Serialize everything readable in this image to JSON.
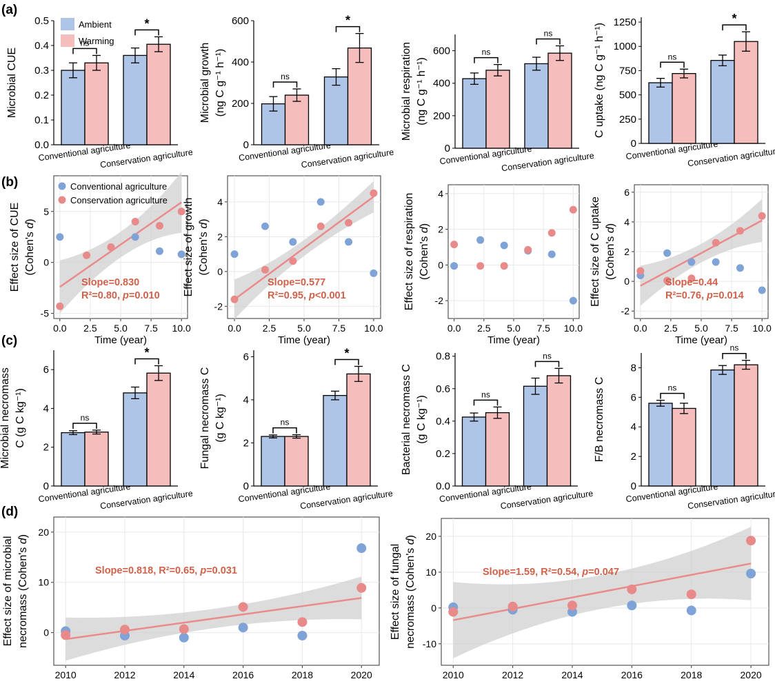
{
  "colors": {
    "ambient": "#aec5e8",
    "warming": "#f6bdbd",
    "conventional": "#7fa3d6",
    "conservation": "#e98a8a",
    "fit": "#ea8a8a",
    "band": "#d0d0d0",
    "annot": "#d0614a"
  },
  "panel_labels": [
    "(a)",
    "(b)",
    "(c)",
    "(d)"
  ],
  "chart_data": [
    {
      "id": "a1",
      "type": "bar",
      "categories": [
        "Conventional agriculture",
        "Conservation agriculture"
      ],
      "series": [
        {
          "name": "Ambient",
          "values": [
            0.3,
            0.36
          ],
          "errors": [
            0.03,
            0.03
          ]
        },
        {
          "name": "Warming",
          "values": [
            0.33,
            0.405
          ],
          "errors": [
            0.03,
            0.03
          ]
        }
      ],
      "ylabel": "Microbial CUE",
      "ylim": [
        0,
        0.5
      ],
      "yticks": [
        "0.0",
        "0.1",
        "0.2",
        "0.3",
        "0.4",
        "0.5"
      ],
      "sig": [
        "ns",
        "*"
      ],
      "legend": [
        "Ambient",
        "Warming"
      ]
    },
    {
      "id": "a2",
      "type": "bar",
      "categories": [
        "Conventional agriculture",
        "Conservation agriculture"
      ],
      "series": [
        {
          "name": "Ambient",
          "values": [
            198,
            328
          ],
          "errors": [
            35,
            40
          ]
        },
        {
          "name": "Warming",
          "values": [
            240,
            468
          ],
          "errors": [
            30,
            70
          ]
        }
      ],
      "ylabel": [
        "Microbial growth",
        "(ng C g⁻¹ h⁻¹)"
      ],
      "ylim": [
        0,
        600
      ],
      "yticks": [
        "0",
        "200",
        "400",
        "600"
      ],
      "sig": [
        "ns",
        "*"
      ]
    },
    {
      "id": "a3",
      "type": "bar",
      "categories": [
        "Conventional agriculture",
        "Conservation agriculture"
      ],
      "series": [
        {
          "name": "Ambient",
          "values": [
            428,
            520
          ],
          "errors": [
            35,
            40
          ]
        },
        {
          "name": "Warming",
          "values": [
            480,
            585
          ],
          "errors": [
            35,
            45
          ]
        }
      ],
      "ylabel": [
        "Microbial respiration",
        "(ng C g⁻¹ h⁻¹)"
      ],
      "ylim": [
        0,
        700
      ],
      "yticks": [
        "0",
        "200",
        "400",
        "600"
      ],
      "sig": [
        "ns",
        "ns"
      ]
    },
    {
      "id": "a4",
      "type": "bar",
      "categories": [
        "Conventional agriculture",
        "Conservation agriculture"
      ],
      "series": [
        {
          "name": "Ambient",
          "values": [
            625,
            855
          ],
          "errors": [
            45,
            55
          ]
        },
        {
          "name": "Warming",
          "values": [
            720,
            1050
          ],
          "errors": [
            45,
            100
          ]
        }
      ],
      "ylabel": "C uptake   (ng C g⁻¹ h⁻¹)",
      "ylim": [
        0,
        1300
      ],
      "yticks": [
        "0",
        "250",
        "500",
        "750",
        "1000",
        "1250"
      ],
      "sig": [
        "ns",
        "*"
      ]
    },
    {
      "id": "b1",
      "type": "scatter",
      "xlabel": "Time (year)",
      "ylabel": [
        "Effect size of CUE",
        "(Cohen's d)"
      ],
      "xlim": [
        -0.5,
        10.5
      ],
      "ylim": [
        -5.5,
        8.5
      ],
      "xticks": [
        "0.0",
        "2.5",
        "5.0",
        "7.5",
        "10.0"
      ],
      "yticks": [
        "-5",
        "0",
        "5"
      ],
      "series": [
        {
          "name": "Conventional agriculture",
          "x": [
            0,
            6.2,
            8.2,
            10
          ],
          "y": [
            2.5,
            2.5,
            1.1,
            0.8
          ]
        },
        {
          "name": "Conservation agriculture",
          "x": [
            0,
            2.2,
            4.2,
            6.2,
            8.2,
            10
          ],
          "y": [
            -4.3,
            0.7,
            1.5,
            4,
            3.6,
            5
          ]
        }
      ],
      "fit": {
        "x": [
          0,
          10
        ],
        "y": [
          -2.4,
          5.9
        ],
        "band_lo": [
          -5,
          2.9
        ],
        "band_hi": [
          0.2,
          8.9
        ]
      },
      "annotation": [
        "Slope=0.830",
        "R²=0.80, p=0.010"
      ],
      "legend": [
        "Conventional agriculture",
        "Conservation agriculture"
      ]
    },
    {
      "id": "b2",
      "type": "scatter",
      "xlabel": "Time (year)",
      "ylabel": [
        "Effect size of growth",
        "(Cohen's d)"
      ],
      "xlim": [
        -0.5,
        10.5
      ],
      "ylim": [
        -2.7,
        5.5
      ],
      "xticks": [
        "0.0",
        "2.5",
        "5.0",
        "7.5",
        "10.0"
      ],
      "yticks": [
        "-2",
        "0",
        "2",
        "4"
      ],
      "series": [
        {
          "name": "Conventional agriculture",
          "x": [
            0,
            2.2,
            4.2,
            6.2,
            8.2,
            10
          ],
          "y": [
            1,
            2.6,
            1.7,
            4,
            1.7,
            -0.1
          ]
        },
        {
          "name": "Conservation agriculture",
          "x": [
            0,
            2.2,
            4.2,
            6.2,
            8.2,
            10
          ],
          "y": [
            -1.6,
            0.1,
            0.6,
            2.6,
            2.8,
            4.5
          ]
        }
      ],
      "fit": {
        "x": [
          0,
          10
        ],
        "y": [
          -1.6,
          4.3
        ],
        "band_lo": [
          -2.7,
          3.4
        ],
        "band_hi": [
          -0.4,
          5.2
        ]
      },
      "annotation": [
        "Slope=0.577",
        "R²=0.95, p<0.001"
      ]
    },
    {
      "id": "b3",
      "type": "scatter",
      "xlabel": "Time (year)",
      "ylabel": [
        "Effect size of respiration",
        "(Cohen's d)"
      ],
      "xlim": [
        -0.5,
        10.5
      ],
      "ylim": [
        -3,
        4.5
      ],
      "xticks": [
        "0.0",
        "2.5",
        "5.0",
        "7.5",
        "10.0"
      ],
      "yticks": [
        "-2",
        "0",
        "2",
        "4"
      ],
      "series": [
        {
          "name": "Conventional agriculture",
          "x": [
            0,
            2.2,
            4.2,
            6.2,
            8.2,
            10
          ],
          "y": [
            -0.05,
            1.4,
            1.1,
            0.8,
            0.6,
            -2
          ]
        },
        {
          "name": "Conservation agriculture",
          "x": [
            0,
            2.2,
            4.2,
            6.2,
            8.2,
            10
          ],
          "y": [
            1.15,
            -0.05,
            -0.05,
            0.85,
            1.8,
            3.1
          ]
        }
      ]
    },
    {
      "id": "b4",
      "type": "scatter",
      "xlabel": "Time (year)",
      "ylabel": [
        "Effect size of C uptake",
        "(Cohen's d)"
      ],
      "xlim": [
        -0.5,
        10.5
      ],
      "ylim": [
        -2.5,
        6.5
      ],
      "xticks": [
        "0.0",
        "2.5",
        "5.0",
        "7.5",
        "10.0"
      ],
      "yticks": [
        "-2",
        "0",
        "2",
        "4",
        "6"
      ],
      "series": [
        {
          "name": "Conventional agriculture",
          "x": [
            0,
            2.2,
            4.2,
            6.2,
            8.2,
            10
          ],
          "y": [
            0.4,
            1.9,
            1.3,
            1.3,
            0.9,
            -0.6
          ]
        },
        {
          "name": "Conservation agriculture",
          "x": [
            0,
            2.2,
            4.2,
            6.2,
            8.2,
            10
          ],
          "y": [
            0.7,
            0.05,
            0.2,
            2.6,
            3.4,
            4.4
          ]
        }
      ],
      "fit": {
        "x": [
          0,
          10
        ],
        "y": [
          -0.3,
          4.1
        ],
        "band_lo": [
          -1.6,
          2.6
        ],
        "band_hi": [
          1.1,
          5.5
        ]
      },
      "annotation": [
        "Slope=0.44",
        "R²=0.76, p=0.014"
      ]
    },
    {
      "id": "c1",
      "type": "bar",
      "categories": [
        "Conventional agriculture",
        "Conservation agriculture"
      ],
      "series": [
        {
          "name": "Ambient",
          "values": [
            2.75,
            4.8
          ],
          "errors": [
            0.1,
            0.3
          ]
        },
        {
          "name": "Warming",
          "values": [
            2.78,
            5.82
          ],
          "errors": [
            0.1,
            0.38
          ]
        }
      ],
      "ylabel": [
        "Microbial necromass",
        "C  (g C kg⁻¹)"
      ],
      "ylim": [
        0,
        7
      ],
      "yticks": [
        "0",
        "2",
        "4",
        "6"
      ],
      "sig": [
        "ns",
        "*"
      ]
    },
    {
      "id": "c2",
      "type": "bar",
      "categories": [
        "Conventional agriculture",
        "Conservation agriculture"
      ],
      "series": [
        {
          "name": "Ambient",
          "values": [
            2.3,
            4.2
          ],
          "errors": [
            0.07,
            0.2
          ]
        },
        {
          "name": "Warming",
          "values": [
            2.3,
            5.2
          ],
          "errors": [
            0.08,
            0.35
          ]
        }
      ],
      "ylabel": [
        "Fungal necromass C",
        "(g C kg⁻¹)"
      ],
      "ylim": [
        0,
        6.3
      ],
      "yticks": [
        "0",
        "2",
        "4",
        "6"
      ],
      "sig": [
        "ns",
        "*"
      ]
    },
    {
      "id": "c3",
      "type": "bar",
      "categories": [
        "Conventional agriculture",
        "Conservation agriculture"
      ],
      "series": [
        {
          "name": "Ambient",
          "values": [
            0.425,
            0.615
          ],
          "errors": [
            0.025,
            0.05
          ]
        },
        {
          "name": "Warming",
          "values": [
            0.452,
            0.68
          ],
          "errors": [
            0.035,
            0.045
          ]
        }
      ],
      "ylabel": [
        "Bacterial necromass C",
        "(g C kg⁻¹)"
      ],
      "ylim": [
        0,
        0.82
      ],
      "yticks": [
        "0.0",
        "0.2",
        "0.4",
        "0.6",
        "0.8"
      ],
      "sig": [
        "ns",
        "ns"
      ]
    },
    {
      "id": "c4",
      "type": "bar",
      "categories": [
        "Conventional agriculture",
        "Conservation agriculture"
      ],
      "series": [
        {
          "name": "Ambient",
          "values": [
            5.6,
            7.85
          ],
          "errors": [
            0.2,
            0.3
          ]
        },
        {
          "name": "Warming",
          "values": [
            5.25,
            8.2
          ],
          "errors": [
            0.35,
            0.3
          ]
        }
      ],
      "ylabel": "F/B necromass C",
      "ylim": [
        0,
        9
      ],
      "yticks": [
        "0",
        "2",
        "4",
        "6",
        "8"
      ],
      "sig": [
        "ns",
        "ns"
      ]
    },
    {
      "id": "d1",
      "type": "scatter",
      "ylabel": [
        "Effect size of microbial",
        "necromass (Cohen's d)"
      ],
      "xlim": [
        2009.6,
        2020.6
      ],
      "ylim": [
        -6.5,
        23
      ],
      "xticks": [
        "2010",
        "2012",
        "2014",
        "2016",
        "2018",
        "2020"
      ],
      "yticks": [
        "0",
        "10",
        "20"
      ],
      "series": [
        {
          "name": "Conventional agriculture",
          "x": [
            2010,
            2012,
            2014,
            2016,
            2018,
            2020
          ],
          "y": [
            0.3,
            -0.6,
            -1,
            1,
            -0.6,
            16.8
          ]
        },
        {
          "name": "Conservation agriculture",
          "x": [
            2010,
            2012,
            2014,
            2016,
            2018,
            2020
          ],
          "y": [
            -0.5,
            0.6,
            0.7,
            5.1,
            2.1,
            8.9
          ]
        }
      ],
      "fit": {
        "x": [
          2010,
          2020
        ],
        "y": [
          -1.3,
          6.9
        ],
        "band_lo": [
          -5.6,
          2.6
        ],
        "band_hi": [
          3,
          11.1
        ]
      },
      "annotation": "Slope=0.818, R²=0.65, p=0.031"
    },
    {
      "id": "d2",
      "type": "scatter",
      "ylabel": [
        "Effect size of fungal",
        "necromass (Cohen's d)"
      ],
      "xlim": [
        2009.6,
        2020.6
      ],
      "ylim": [
        -16,
        25
      ],
      "xticks": [
        "2010",
        "2012",
        "2014",
        "2016",
        "2018",
        "2020"
      ],
      "yticks": [
        "-10",
        "0",
        "10",
        "20"
      ],
      "series": [
        {
          "name": "Conventional agriculture",
          "x": [
            2010,
            2012,
            2014,
            2016,
            2018,
            2020
          ],
          "y": [
            0.2,
            -0.5,
            -1.1,
            0.7,
            -0.7,
            9.6
          ]
        },
        {
          "name": "Conservation agriculture",
          "x": [
            2010,
            2012,
            2014,
            2016,
            2018,
            2020
          ],
          "y": [
            -1.1,
            0.4,
            0.7,
            5.2,
            3.8,
            18.8
          ]
        }
      ],
      "fit": {
        "x": [
          2010,
          2020
        ],
        "y": [
          -3.4,
          12.4
        ],
        "band_lo": [
          -14.5,
          2.2
        ],
        "band_hi": [
          6.8,
          22.7
        ]
      },
      "annotation": "Slope=1.59, R²=0.54, p=0.047"
    }
  ]
}
